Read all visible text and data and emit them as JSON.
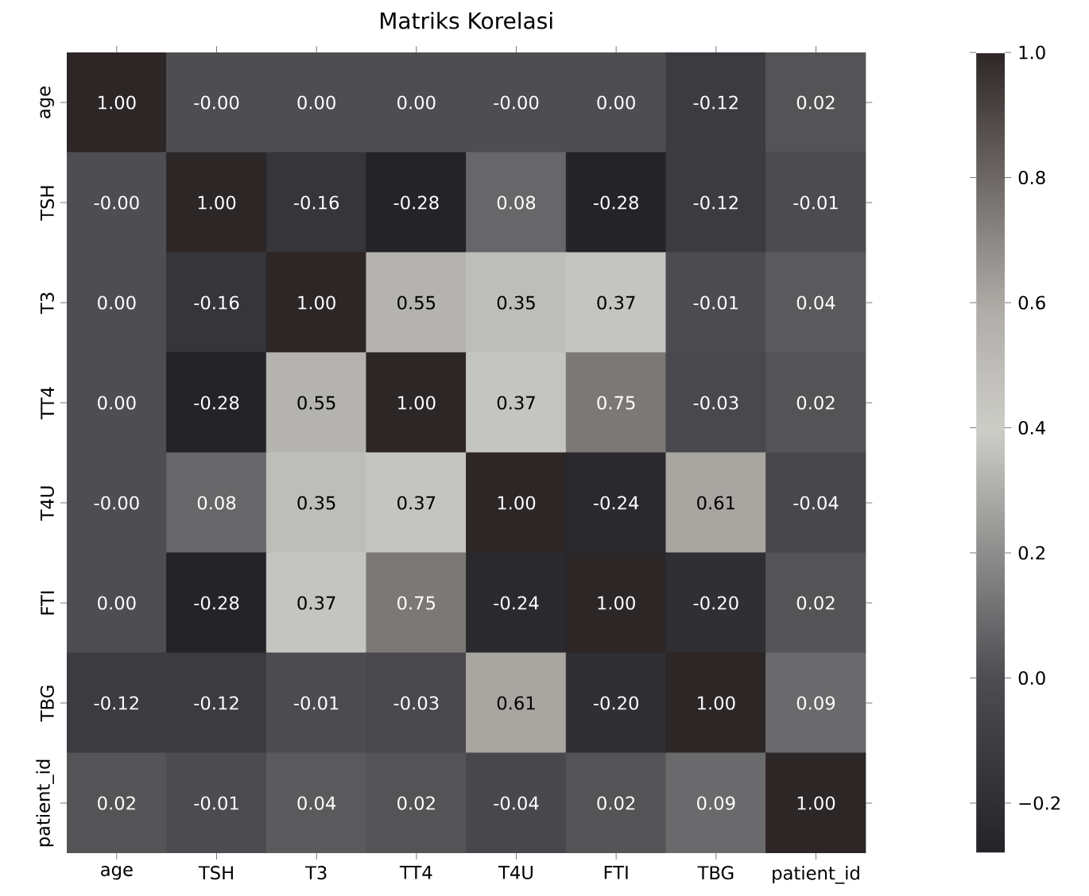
{
  "chart_data": {
    "type": "heatmap",
    "title": "Matriks Korelasi",
    "categories": [
      "age",
      "TSH",
      "T3",
      "TT4",
      "T4U",
      "FTI",
      "TBG",
      "patient_id"
    ],
    "y_categories": [
      "age",
      "TSH",
      "T3",
      "TT4",
      "T4U",
      "FTI",
      "TBG",
      "patient_id"
    ],
    "cells": [
      [
        1.0,
        0.0,
        0.0,
        0.0,
        0.0,
        0.0,
        -0.12,
        0.02
      ],
      [
        0.0,
        1.0,
        -0.16,
        -0.28,
        0.08,
        -0.28,
        -0.12,
        -0.01
      ],
      [
        0.0,
        -0.16,
        1.0,
        0.55,
        0.35,
        0.37,
        -0.01,
        0.04
      ],
      [
        0.0,
        -0.28,
        0.55,
        1.0,
        0.37,
        0.75,
        -0.03,
        0.02
      ],
      [
        0.0,
        0.08,
        0.35,
        0.37,
        1.0,
        -0.24,
        0.61,
        -0.04
      ],
      [
        0.0,
        -0.28,
        0.37,
        0.75,
        -0.24,
        1.0,
        -0.2,
        0.02
      ],
      [
        -0.12,
        -0.12,
        -0.01,
        -0.03,
        0.61,
        -0.2,
        1.0,
        0.09
      ],
      [
        0.02,
        -0.01,
        0.04,
        0.02,
        -0.04,
        0.02,
        0.09,
        1.0
      ]
    ],
    "cell_labels": [
      [
        "1.00",
        "-0.00",
        "0.00",
        "0.00",
        "-0.00",
        "0.00",
        "-0.12",
        "0.02"
      ],
      [
        "-0.00",
        "1.00",
        "-0.16",
        "-0.28",
        "0.08",
        "-0.28",
        "-0.12",
        "-0.01"
      ],
      [
        "0.00",
        "-0.16",
        "1.00",
        "0.55",
        "0.35",
        "0.37",
        "-0.01",
        "0.04"
      ],
      [
        "0.00",
        "-0.28",
        "0.55",
        "1.00",
        "0.37",
        "0.75",
        "-0.03",
        "0.02"
      ],
      [
        "-0.00",
        "0.08",
        "0.35",
        "0.37",
        "1.00",
        "-0.24",
        "0.61",
        "-0.04"
      ],
      [
        "0.00",
        "-0.28",
        "0.37",
        "0.75",
        "-0.24",
        "1.00",
        "-0.20",
        "0.02"
      ],
      [
        "-0.12",
        "-0.12",
        "-0.01",
        "-0.03",
        "0.61",
        "-0.20",
        "1.00",
        "0.09"
      ],
      [
        "0.02",
        "-0.01",
        "0.04",
        "0.02",
        "-0.04",
        "0.02",
        "0.09",
        "1.00"
      ]
    ],
    "clim": [
      -0.28,
      1.0
    ],
    "cticks": [
      {
        "value": -0.2,
        "label": "−0.2"
      },
      {
        "value": 0.0,
        "label": "0.0"
      },
      {
        "value": 0.2,
        "label": "0.2"
      },
      {
        "value": 0.4,
        "label": "0.4"
      },
      {
        "value": 0.6,
        "label": "0.6"
      },
      {
        "value": 0.8,
        "label": "0.8"
      },
      {
        "value": 1.0,
        "label": "1.0"
      }
    ]
  }
}
